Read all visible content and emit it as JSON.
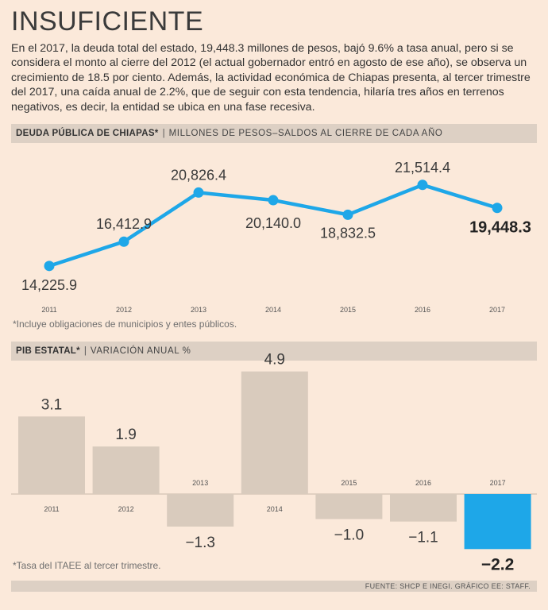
{
  "title": "INSUFICIENTE",
  "intro": "En el 2017, la deuda total del estado, 19,448.3 millones de pesos, bajó 9.6% a tasa anual, pero si se considera el monto al cierre del 2012 (el actual gobernador entró en agosto de ese año), se observa un crecimiento de 18.5 por ciento. Además, la actividad económica de Chiapas presenta, al tercer trimestre del 2017, una caída anual de 2.2%, que de seguir con esta tendencia, hilaría tres años en terrenos negativos, es decir, la entidad se ubica en una fase recesiva.",
  "colors": {
    "accent": "#1ea7e8",
    "bar": "#d9cbbd",
    "background": "#fbe9da"
  },
  "debt_section": {
    "title": "DEUDA PÚBLICA DE CHIAPAS*",
    "separator": "|",
    "subtitle": "MILLONES DE PESOS–SALDOS AL CIERRE DE CADA AÑO",
    "note": "*Incluye obligaciones de municipios y entes públicos."
  },
  "gdp_section": {
    "title": "PIB ESTATAL*",
    "separator": "|",
    "subtitle": "VARIACIÓN ANUAL %",
    "note": "*Tasa del ITAEE al tercer trimestre."
  },
  "footer": "FUENTE: SHCP E INEGI. GRÁFICO EE: STAFF.",
  "chart_data": [
    {
      "type": "line",
      "title": "DEUDA PÚBLICA DE CHIAPAS*",
      "subtitle": "MILLONES DE PESOS–SALDOS AL CIERRE DE CADA AÑO",
      "categories": [
        "2011",
        "2012",
        "2013",
        "2014",
        "2015",
        "2016",
        "2017"
      ],
      "values": [
        14225.9,
        16412.9,
        20826.4,
        20140.0,
        18832.5,
        21514.4,
        19448.3
      ],
      "labels": [
        "14,225.9",
        "16,412.9",
        "20,826.4",
        "20,140.0",
        "18,832.5",
        "21,514.4",
        "19,448.3"
      ],
      "ylim": [
        13000,
        23000
      ],
      "grid": false,
      "xlabel": "",
      "ylabel": ""
    },
    {
      "type": "bar",
      "title": "PIB ESTATAL*",
      "subtitle": "VARIACIÓN ANUAL %",
      "categories": [
        "2011",
        "2012",
        "2013",
        "2014",
        "2015",
        "2016",
        "2017"
      ],
      "values": [
        3.1,
        1.9,
        -1.3,
        4.9,
        -1.0,
        -1.1,
        -2.2
      ],
      "labels": [
        "3.1",
        "1.9",
        "−1.3",
        "4.9",
        "−1.0",
        "−1.1",
        "−2.2"
      ],
      "highlight": "2017",
      "ylim": [
        -2.5,
        5.0
      ],
      "grid": false,
      "xlabel": "",
      "ylabel": ""
    }
  ]
}
